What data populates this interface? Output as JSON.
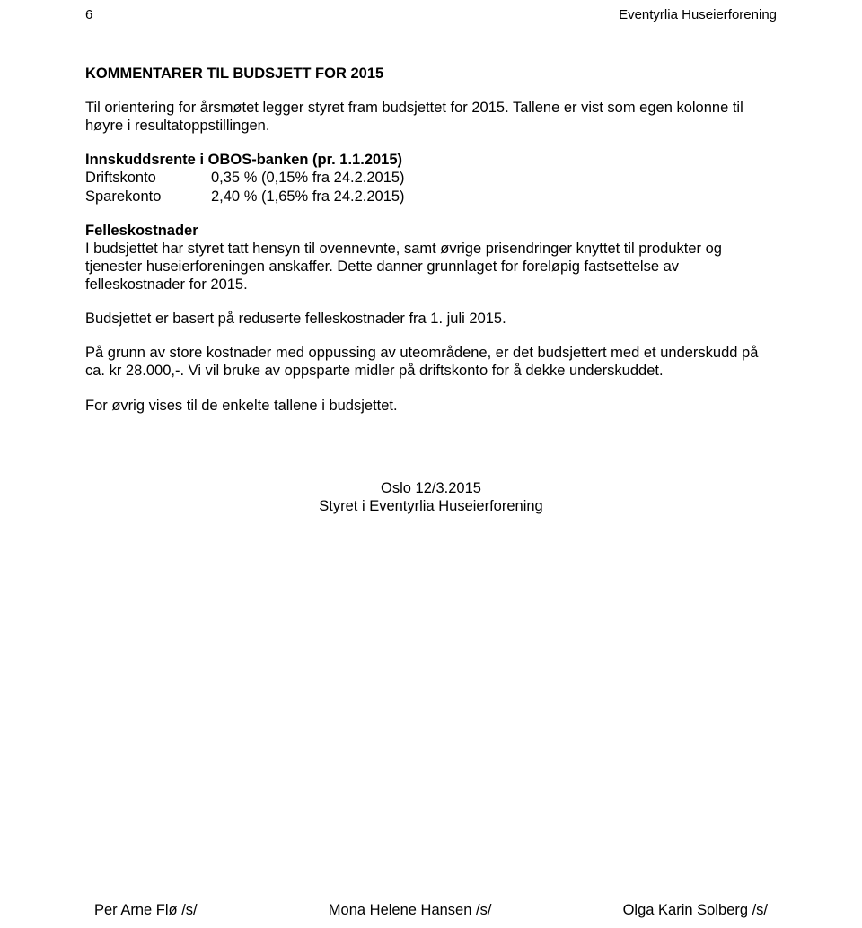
{
  "header": {
    "page_number": "6",
    "org_name": "Eventyrlia Huseierforening"
  },
  "title": "KOMMENTARER TIL BUDSJETT FOR 2015",
  "intro": "Til orientering for årsmøtet legger styret fram budsjettet for 2015. Tallene er vist som egen kolonne til høyre i resultatoppstillingen.",
  "bank_heading": "Innskuddsrente i OBOS-banken (pr. 1.1.2015)",
  "rates": [
    {
      "label": "Driftskonto",
      "value": "0,35 %  (0,15% fra 24.2.2015)"
    },
    {
      "label": "Sparekonto",
      "value": "2,40 %  (1,65% fra 24.2.2015)"
    }
  ],
  "costs_heading": "Felleskostnader",
  "costs_para": "I budsjettet har styret tatt hensyn til ovennevnte, samt øvrige prisendringer knyttet til produkter og tjenester huseierforeningen anskaffer. Dette danner grunnlaget for foreløpig fastsettelse av felleskostnader for 2015.",
  "reduced_para": "Budsjettet er basert på reduserte felleskostnader fra 1. juli 2015.",
  "deficit_para": "På grunn av store kostnader med oppussing av uteområdene, er det budsjettert med et underskudd på ca. kr 28.000,-. Vi vil bruke av oppsparte midler på driftskonto for å dekke underskuddet.",
  "closing_para": "For øvrig vises til de enkelte tallene i budsjettet.",
  "date_place": "Oslo 12/3.2015",
  "board_line": "Styret i Eventyrlia Huseierforening",
  "signatures": [
    "Per Arne Flø /s/",
    "Mona Helene Hansen /s/",
    "Olga Karin Solberg /s/"
  ]
}
